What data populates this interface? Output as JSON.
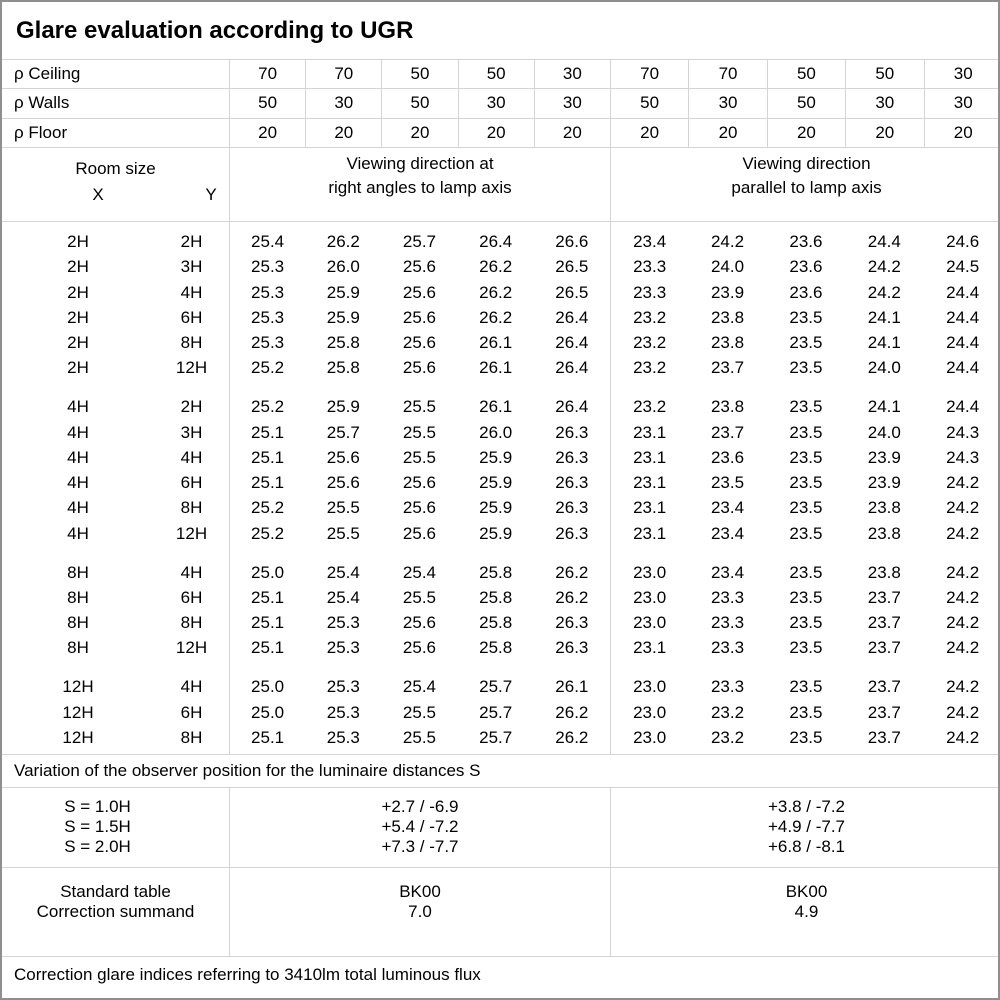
{
  "title": "Glare evaluation according to UGR",
  "reflectance": {
    "rows": [
      {
        "label": "ρ Ceiling",
        "values": [
          "70",
          "70",
          "50",
          "50",
          "30",
          "70",
          "70",
          "50",
          "50",
          "30"
        ]
      },
      {
        "label": "ρ Walls",
        "values": [
          "50",
          "30",
          "50",
          "30",
          "30",
          "50",
          "30",
          "50",
          "30",
          "30"
        ]
      },
      {
        "label": "ρ Floor",
        "values": [
          "20",
          "20",
          "20",
          "20",
          "20",
          "20",
          "20",
          "20",
          "20",
          "20"
        ]
      }
    ]
  },
  "header": {
    "room_size": "Room size",
    "x": "X",
    "y": "Y",
    "left_section": [
      "Viewing direction at",
      "right angles to lamp axis"
    ],
    "right_section": [
      "Viewing direction",
      "parallel to lamp axis"
    ]
  },
  "ugr_blocks": [
    {
      "rows": [
        {
          "x": "2H",
          "y": "2H",
          "left": [
            "25.4",
            "26.2",
            "25.7",
            "26.4",
            "26.6"
          ],
          "right": [
            "23.4",
            "24.2",
            "23.6",
            "24.4",
            "24.6"
          ]
        },
        {
          "x": "2H",
          "y": "3H",
          "left": [
            "25.3",
            "26.0",
            "25.6",
            "26.2",
            "26.5"
          ],
          "right": [
            "23.3",
            "24.0",
            "23.6",
            "24.2",
            "24.5"
          ]
        },
        {
          "x": "2H",
          "y": "4H",
          "left": [
            "25.3",
            "25.9",
            "25.6",
            "26.2",
            "26.5"
          ],
          "right": [
            "23.3",
            "23.9",
            "23.6",
            "24.2",
            "24.4"
          ]
        },
        {
          "x": "2H",
          "y": "6H",
          "left": [
            "25.3",
            "25.9",
            "25.6",
            "26.2",
            "26.4"
          ],
          "right": [
            "23.2",
            "23.8",
            "23.5",
            "24.1",
            "24.4"
          ]
        },
        {
          "x": "2H",
          "y": "8H",
          "left": [
            "25.3",
            "25.8",
            "25.6",
            "26.1",
            "26.4"
          ],
          "right": [
            "23.2",
            "23.8",
            "23.5",
            "24.1",
            "24.4"
          ]
        },
        {
          "x": "2H",
          "y": "12H",
          "left": [
            "25.2",
            "25.8",
            "25.6",
            "26.1",
            "26.4"
          ],
          "right": [
            "23.2",
            "23.7",
            "23.5",
            "24.0",
            "24.4"
          ]
        }
      ]
    },
    {
      "rows": [
        {
          "x": "4H",
          "y": "2H",
          "left": [
            "25.2",
            "25.9",
            "25.5",
            "26.1",
            "26.4"
          ],
          "right": [
            "23.2",
            "23.8",
            "23.5",
            "24.1",
            "24.4"
          ]
        },
        {
          "x": "4H",
          "y": "3H",
          "left": [
            "25.1",
            "25.7",
            "25.5",
            "26.0",
            "26.3"
          ],
          "right": [
            "23.1",
            "23.7",
            "23.5",
            "24.0",
            "24.3"
          ]
        },
        {
          "x": "4H",
          "y": "4H",
          "left": [
            "25.1",
            "25.6",
            "25.5",
            "25.9",
            "26.3"
          ],
          "right": [
            "23.1",
            "23.6",
            "23.5",
            "23.9",
            "24.3"
          ]
        },
        {
          "x": "4H",
          "y": "6H",
          "left": [
            "25.1",
            "25.6",
            "25.6",
            "25.9",
            "26.3"
          ],
          "right": [
            "23.1",
            "23.5",
            "23.5",
            "23.9",
            "24.2"
          ]
        },
        {
          "x": "4H",
          "y": "8H",
          "left": [
            "25.2",
            "25.5",
            "25.6",
            "25.9",
            "26.3"
          ],
          "right": [
            "23.1",
            "23.4",
            "23.5",
            "23.8",
            "24.2"
          ]
        },
        {
          "x": "4H",
          "y": "12H",
          "left": [
            "25.2",
            "25.5",
            "25.6",
            "25.9",
            "26.3"
          ],
          "right": [
            "23.1",
            "23.4",
            "23.5",
            "23.8",
            "24.2"
          ]
        }
      ]
    },
    {
      "rows": [
        {
          "x": "8H",
          "y": "4H",
          "left": [
            "25.0",
            "25.4",
            "25.4",
            "25.8",
            "26.2"
          ],
          "right": [
            "23.0",
            "23.4",
            "23.5",
            "23.8",
            "24.2"
          ]
        },
        {
          "x": "8H",
          "y": "6H",
          "left": [
            "25.1",
            "25.4",
            "25.5",
            "25.8",
            "26.2"
          ],
          "right": [
            "23.0",
            "23.3",
            "23.5",
            "23.7",
            "24.2"
          ]
        },
        {
          "x": "8H",
          "y": "8H",
          "left": [
            "25.1",
            "25.3",
            "25.6",
            "25.8",
            "26.3"
          ],
          "right": [
            "23.0",
            "23.3",
            "23.5",
            "23.7",
            "24.2"
          ]
        },
        {
          "x": "8H",
          "y": "12H",
          "left": [
            "25.1",
            "25.3",
            "25.6",
            "25.8",
            "26.3"
          ],
          "right": [
            "23.1",
            "23.3",
            "23.5",
            "23.7",
            "24.2"
          ]
        }
      ]
    },
    {
      "rows": [
        {
          "x": "12H",
          "y": "4H",
          "left": [
            "25.0",
            "25.3",
            "25.4",
            "25.7",
            "26.1"
          ],
          "right": [
            "23.0",
            "23.3",
            "23.5",
            "23.7",
            "24.2"
          ]
        },
        {
          "x": "12H",
          "y": "6H",
          "left": [
            "25.0",
            "25.3",
            "25.5",
            "25.7",
            "26.2"
          ],
          "right": [
            "23.0",
            "23.2",
            "23.5",
            "23.7",
            "24.2"
          ]
        },
        {
          "x": "12H",
          "y": "8H",
          "left": [
            "25.1",
            "25.3",
            "25.5",
            "25.7",
            "26.2"
          ],
          "right": [
            "23.0",
            "23.2",
            "23.5",
            "23.7",
            "24.2"
          ]
        }
      ]
    }
  ],
  "variation_note": "Variation of the observer position for the luminaire distances S",
  "s_variation": {
    "labels": [
      "S = 1.0H",
      "S = 1.5H",
      "S = 2.0H"
    ],
    "left": [
      "+2.7 / -6.9",
      "+5.4 / -7.2",
      "+7.3 / -7.7"
    ],
    "right": [
      "+3.8 / -7.2",
      "+4.9 / -7.7",
      "+6.8 / -8.1"
    ]
  },
  "standard": {
    "labels": [
      "Standard table",
      "Correction summand"
    ],
    "left": [
      "BK00",
      "7.0"
    ],
    "right": [
      "BK00",
      "4.9"
    ]
  },
  "footer_note": "Correction glare indices referring to 3410lm total luminous flux"
}
